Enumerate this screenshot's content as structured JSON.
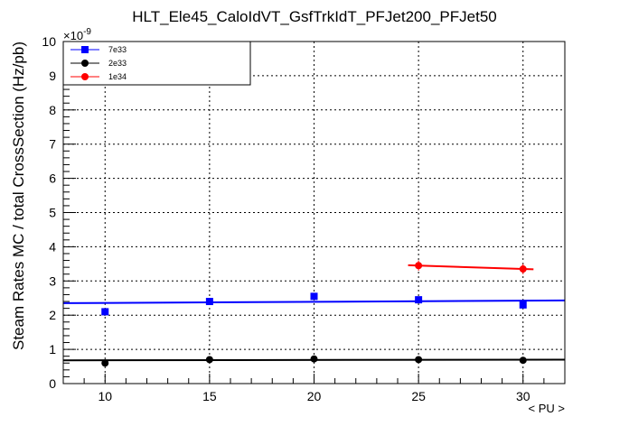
{
  "chart_data": {
    "type": "scatter",
    "title": "HLT_Ele45_CaloIdVT_GsfTrkIdT_PFJet200_PFJet50",
    "xlabel": "< PU >",
    "ylabel": "Steam Rates MC / total CrossSection (Hz/pb)",
    "y_multiplier": "×10",
    "y_exponent": "-9",
    "xlim": [
      8,
      32
    ],
    "ylim": [
      0,
      10
    ],
    "x_ticks": [
      10,
      15,
      20,
      25,
      30
    ],
    "y_ticks": [
      0,
      1,
      2,
      3,
      4,
      5,
      6,
      7,
      8,
      9,
      10
    ],
    "grid": true,
    "legend_position": "top-left",
    "series": [
      {
        "name": "7e33",
        "color": "#0000ff",
        "marker": "square",
        "x": [
          10,
          15,
          20,
          25,
          30
        ],
        "y": [
          2.1,
          2.4,
          2.55,
          2.45,
          2.3
        ],
        "yerr": [
          0.05,
          0.05,
          0.05,
          0.05,
          0.05
        ],
        "fit": {
          "x": [
            8,
            32
          ],
          "y": [
            2.35,
            2.43
          ]
        }
      },
      {
        "name": "2e33",
        "color": "#000000",
        "marker": "circle",
        "x": [
          10,
          15,
          20,
          25,
          30
        ],
        "y": [
          0.6,
          0.7,
          0.72,
          0.7,
          0.68
        ],
        "yerr": [
          0.03,
          0.03,
          0.03,
          0.03,
          0.03
        ],
        "fit": {
          "x": [
            8,
            32
          ],
          "y": [
            0.68,
            0.7
          ]
        }
      },
      {
        "name": "1e34",
        "color": "#ff0000",
        "marker": "circle",
        "x": [
          25,
          30
        ],
        "y": [
          3.45,
          3.35
        ],
        "yerr": [
          0.15,
          0.15
        ],
        "fit": {
          "x": [
            24.5,
            30.5
          ],
          "y": [
            3.46,
            3.34
          ]
        }
      }
    ]
  }
}
